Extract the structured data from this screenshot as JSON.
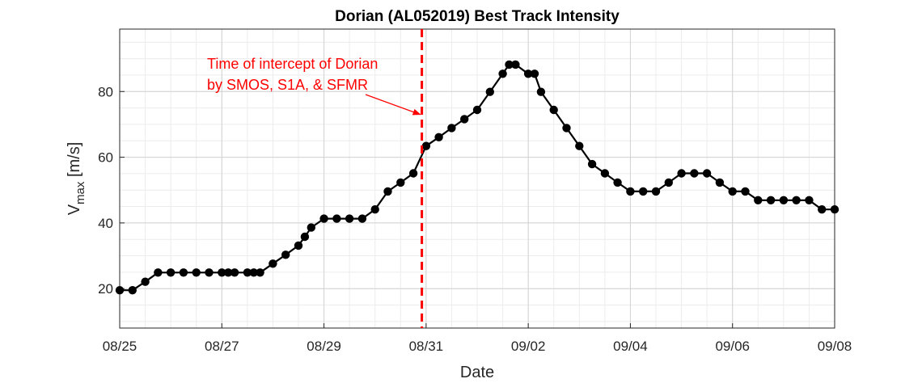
{
  "chart_data": {
    "type": "line",
    "title": "Dorian (AL052019) Best Track Intensity",
    "xlabel": "Date",
    "ylabel": {
      "main": "V",
      "sub": "max",
      "unit": " [m/s]"
    },
    "xlim": [
      "08/25 00Z",
      "09/08 00Z"
    ],
    "ylim": [
      8,
      99
    ],
    "xticks": [
      "08/25",
      "08/27",
      "08/29",
      "08/31",
      "09/02",
      "09/04",
      "09/06",
      "09/08"
    ],
    "yticks": [
      20,
      40,
      60,
      80
    ],
    "grid": true,
    "minor_grid": true,
    "series": [
      {
        "color": "#000000",
        "x": [
          "08/25 00Z",
          "08/25 06Z",
          "08/25 12Z",
          "08/25 18Z",
          "08/26 00Z",
          "08/26 06Z",
          "08/26 12Z",
          "08/26 18Z",
          "08/27 00Z",
          "08/27 03Z",
          "08/27 06Z",
          "08/27 12Z",
          "08/27 15Z",
          "08/27 18Z",
          "08/28 00Z",
          "08/28 06Z",
          "08/28 12Z",
          "08/28 15Z",
          "08/28 18Z",
          "08/29 00Z",
          "08/29 06Z",
          "08/29 12Z",
          "08/29 18Z",
          "08/30 00Z",
          "08/30 06Z",
          "08/30 12Z",
          "08/30 18Z",
          "08/31 00Z",
          "08/31 06Z",
          "08/31 12Z",
          "08/31 18Z",
          "09/01 00Z",
          "09/01 06Z",
          "09/01 12Z",
          "09/01 15Z",
          "09/01 18Z",
          "09/02 00Z",
          "09/02 03Z",
          "09/02 06Z",
          "09/02 12Z",
          "09/02 18Z",
          "09/03 00Z",
          "09/03 06Z",
          "09/03 12Z",
          "09/03 18Z",
          "09/04 00Z",
          "09/04 06Z",
          "09/04 12Z",
          "09/04 18Z",
          "09/05 00Z",
          "09/05 06Z",
          "09/05 12Z",
          "09/05 18Z",
          "09/06 00Z",
          "09/06 06Z",
          "09/06 12Z",
          "09/06 18Z",
          "09/07 00Z",
          "09/07 06Z",
          "09/07 12Z",
          "09/07 18Z",
          "09/08 00Z"
        ],
        "values": [
          19.5,
          19.5,
          22.1,
          24.9,
          24.9,
          24.9,
          24.9,
          24.9,
          24.9,
          24.9,
          24.9,
          24.9,
          24.9,
          24.9,
          27.6,
          30.3,
          33.1,
          35.8,
          38.6,
          41.3,
          41.3,
          41.3,
          41.3,
          44.1,
          49.6,
          52.3,
          55.1,
          63.4,
          66.1,
          68.9,
          71.6,
          74.4,
          79.9,
          85.4,
          88.2,
          88.2,
          85.4,
          85.4,
          79.9,
          74.4,
          68.9,
          63.4,
          57.9,
          55.1,
          52.3,
          49.6,
          49.6,
          49.6,
          52.3,
          55.1,
          55.1,
          55.1,
          52.3,
          49.6,
          49.6,
          46.9,
          46.9,
          46.9,
          46.9,
          46.9,
          44.1,
          44.1
        ]
      }
    ],
    "vline": {
      "x": "08/30 22Z",
      "color": "#ff0000",
      "style": "dashed"
    },
    "annotation": {
      "lines": [
        "Time of intercept of Dorian",
        "by SMOS, S1A, & SFMR"
      ],
      "arrow_to": {
        "x": "08/30 22Z",
        "y": 73
      },
      "color": "#ff0000"
    }
  }
}
